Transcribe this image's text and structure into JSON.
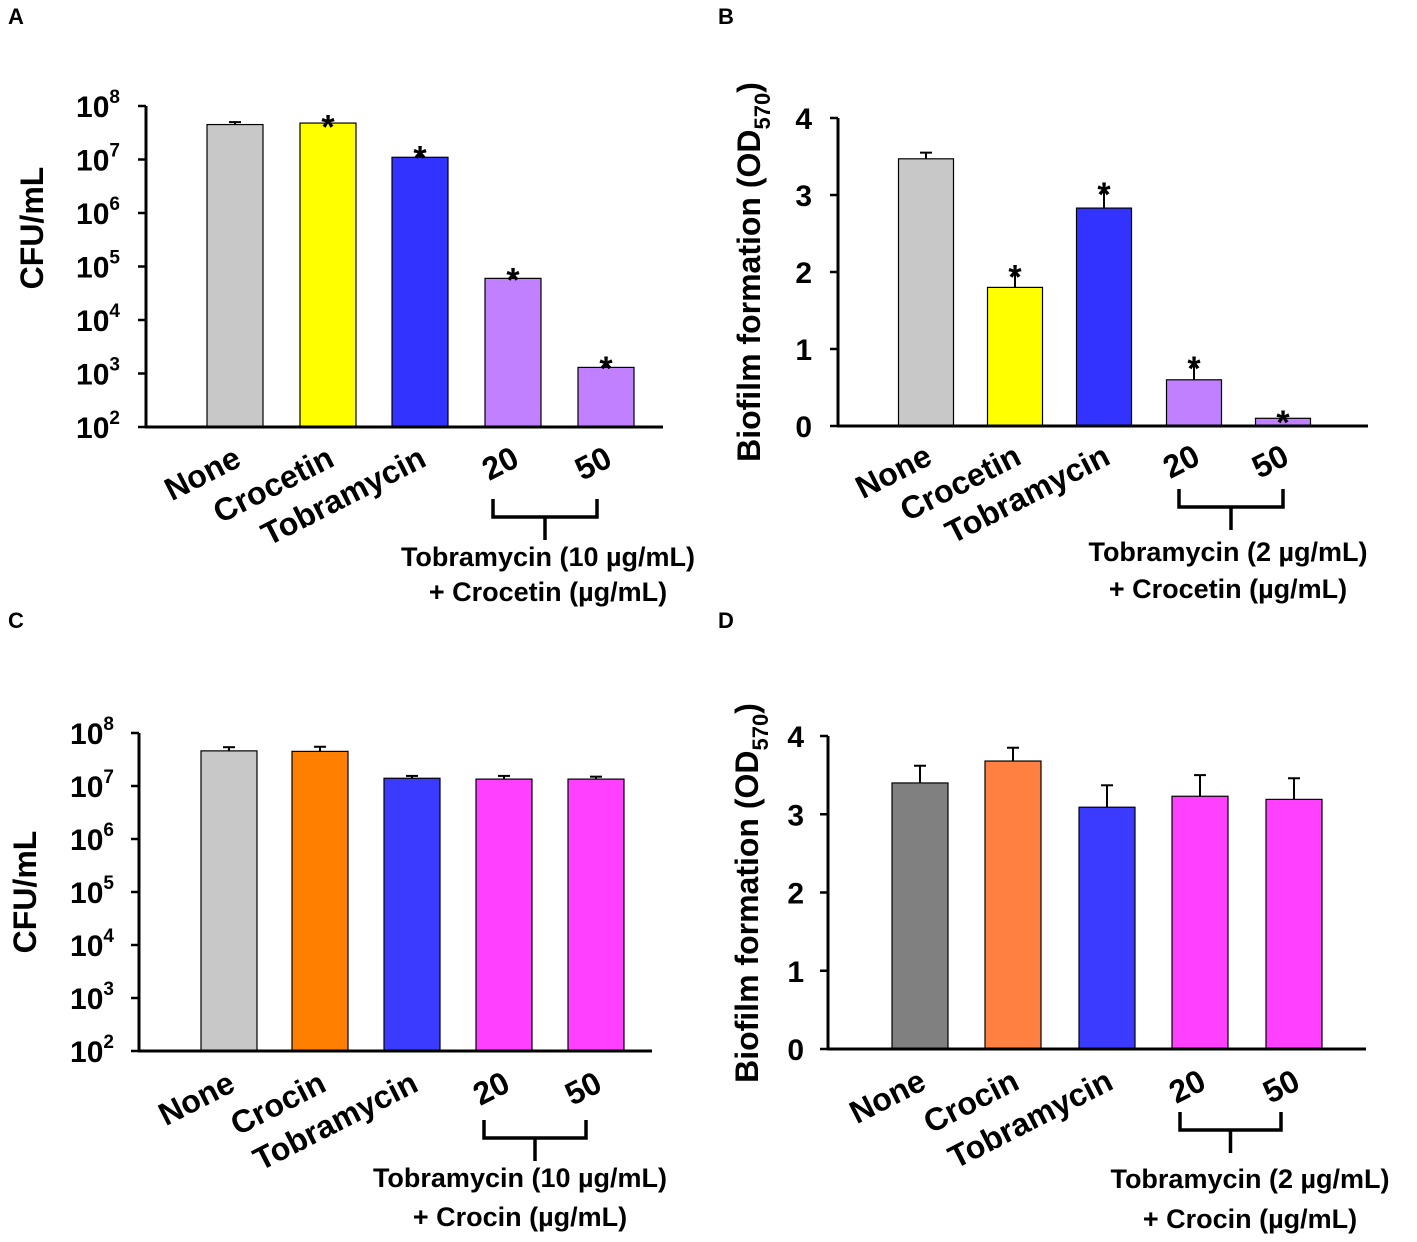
{
  "chart_data": [
    {
      "panel": "A",
      "type": "bar",
      "yscale": "log",
      "ylabel": "CFU/mL",
      "ylim": [
        100,
        100000000
      ],
      "ytick_base": "10",
      "ytick_exponents": [
        "2",
        "3",
        "4",
        "5",
        "6",
        "7",
        "8"
      ],
      "categories": [
        "None",
        "Crocetin",
        "Tobramycin",
        "20",
        "50"
      ],
      "values": [
        45000000,
        48000000,
        11000000,
        60000,
        1300
      ],
      "errors_upper": [
        50000000,
        54000000,
        14000000,
        74000,
        1650
      ],
      "colors": [
        "#c8c8c8",
        "#ffff00",
        "#3333ff",
        "#c080ff",
        "#c080ff"
      ],
      "significance": [
        "",
        "*",
        "*",
        "*",
        "*"
      ],
      "combo_label_line1": "Tobramycin (10 µg/mL)",
      "combo_label_line2": "+ Crocetin (µg/mL)"
    },
    {
      "panel": "B",
      "type": "bar",
      "yscale": "linear",
      "ylabel": "Biofilm formation (OD",
      "ylabel_sub": "570",
      "ylabel_end": ")",
      "ylim": [
        0,
        4
      ],
      "yticks": [
        "0",
        "1",
        "2",
        "3",
        "4"
      ],
      "categories": [
        "None",
        "Crocetin",
        "Tobramycin",
        "20",
        "50"
      ],
      "values": [
        3.47,
        1.8,
        2.83,
        0.6,
        0.1
      ],
      "errors_upper": [
        3.55,
        2.02,
        3.09,
        0.83,
        0.13
      ],
      "colors": [
        "#c8c8c8",
        "#ffff00",
        "#3333ff",
        "#c080ff",
        "#c080ff"
      ],
      "significance": [
        "",
        "*",
        "*",
        "*",
        "*"
      ],
      "combo_label_line1": "Tobramycin (2 µg/mL)",
      "combo_label_line2": "+ Crocetin (µg/mL)"
    },
    {
      "panel": "C",
      "type": "bar",
      "yscale": "log",
      "ylabel": "CFU/mL",
      "ylim": [
        100,
        100000000
      ],
      "ytick_base": "10",
      "ytick_exponents": [
        "2",
        "3",
        "4",
        "5",
        "6",
        "7",
        "8"
      ],
      "categories": [
        "None",
        "Crocin",
        "Tobramycin",
        "20",
        "50"
      ],
      "values": [
        46000000,
        45000000,
        14000000,
        13500000,
        13500000
      ],
      "errors_upper": [
        54000000,
        55000000,
        15500000,
        15500000,
        15000000
      ],
      "colors": [
        "#c8c8c8",
        "#ff8000",
        "#3b3bff",
        "#ff40ff",
        "#ff40ff"
      ],
      "significance": [
        "",
        "",
        "",
        "",
        ""
      ],
      "combo_label_line1": "Tobramycin (10 µg/mL)",
      "combo_label_line2": "+ Crocin (µg/mL)"
    },
    {
      "panel": "D",
      "type": "bar",
      "yscale": "linear",
      "ylabel": "Biofilm formation (OD",
      "ylabel_sub": "570",
      "ylabel_end": ")",
      "ylim": [
        0,
        4
      ],
      "yticks": [
        "0",
        "1",
        "2",
        "3",
        "4"
      ],
      "categories": [
        "None",
        "Crocin",
        "Tobramycin",
        "20",
        "50"
      ],
      "values": [
        3.4,
        3.68,
        3.09,
        3.23,
        3.19
      ],
      "errors_upper": [
        3.62,
        3.85,
        3.37,
        3.5,
        3.46
      ],
      "colors": [
        "#808080",
        "#ff8040",
        "#3b3bff",
        "#ff40ff",
        "#ff40ff"
      ],
      "significance": [
        "",
        "",
        "",
        "",
        ""
      ],
      "combo_label_line1": "Tobramycin (2 µg/mL)",
      "combo_label_line2": "+ Crocin (µg/mL)"
    }
  ]
}
